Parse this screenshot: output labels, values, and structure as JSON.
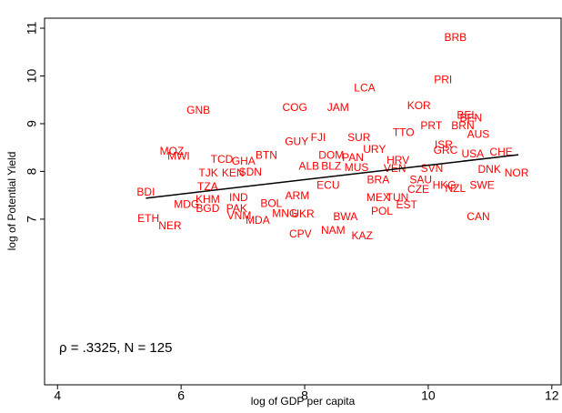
{
  "chart_data": {
    "type": "scatter",
    "x_label": "log of GDP per capita",
    "y_label": "log of Potential Yield",
    "annotation": "ρ = .3325, N = 125",
    "labels": [
      "BRB",
      "PRI",
      "LCA",
      "KOR",
      "GNB",
      "COG",
      "JAM",
      "BEL",
      "BEN",
      "PRT",
      "BRN",
      "TTO",
      "AUS",
      "GUY",
      "FJI",
      "SUR",
      "ISR",
      "URY",
      "GRC",
      "USA",
      "CHE",
      "MOZ",
      "MWI",
      "TCD",
      "GHA",
      "BTN",
      "DOM",
      "PAN",
      "HRV",
      "BLZ",
      "MUS",
      "VEN",
      "SVN",
      "DNK",
      "NOR",
      "TJK",
      "KEN",
      "SDN",
      "ECU",
      "SAU",
      "TZA",
      "BDI",
      "HKG",
      "NZL",
      "SWE",
      "CZE",
      "BRA",
      "KHM",
      "MDG",
      "BGD",
      "PAK",
      "IND",
      "MEX",
      "TUN",
      "EST",
      "POL",
      "CAN",
      "ETH",
      "NER",
      "VNM",
      "MDA",
      "BOL",
      "MNG",
      "UKR",
      "BWA",
      "NAM",
      "CPV",
      "KAZ",
      "ARM",
      "ALB"
    ],
    "x": [
      10.44,
      10.24,
      8.97,
      9.85,
      6.28,
      7.84,
      8.54,
      10.63,
      10.69,
      10.05,
      10.56,
      9.6,
      10.81,
      7.87,
      8.22,
      8.88,
      10.25,
      9.13,
      10.28,
      10.72,
      11.18,
      5.85,
      5.96,
      6.66,
      7.01,
      7.38,
      8.43,
      8.78,
      9.51,
      8.43,
      8.84,
      9.46,
      10.06,
      10.99,
      11.43,
      6.44,
      6.84,
      7.12,
      8.38,
      9.88,
      6.43,
      5.43,
      10.26,
      10.44,
      10.87,
      9.84,
      9.19,
      6.43,
      6.09,
      6.43,
      6.9,
      6.93,
      9.19,
      9.5,
      9.65,
      9.25,
      10.81,
      5.47,
      5.82,
      6.94,
      7.24,
      7.46,
      7.68,
      7.97,
      8.66,
      8.46,
      7.93,
      8.93,
      7.88,
      8.07
    ],
    "values": [
      10.79,
      9.91,
      9.74,
      9.36,
      9.27,
      9.33,
      9.33,
      9.16,
      9.11,
      8.95,
      8.95,
      8.8,
      8.76,
      8.61,
      8.7,
      8.7,
      8.55,
      8.45,
      8.43,
      8.35,
      8.39,
      8.41,
      8.31,
      8.24,
      8.2,
      8.33,
      8.33,
      8.28,
      8.22,
      8.1,
      8.07,
      8.05,
      8.05,
      8.03,
      7.95,
      7.95,
      7.95,
      7.97,
      7.7,
      7.81,
      7.67,
      7.55,
      7.7,
      7.63,
      7.7,
      7.61,
      7.81,
      7.4,
      7.3,
      7.21,
      7.21,
      7.44,
      7.44,
      7.44,
      7.29,
      7.15,
      7.04,
      7.0,
      6.85,
      7.06,
      6.96,
      7.32,
      7.11,
      7.1,
      7.04,
      6.75,
      6.68,
      6.64,
      7.48,
      8.1
    ],
    "color": "#ff0000",
    "fit_line": {
      "x": [
        5.43,
        11.46
      ],
      "values": [
        7.44,
        8.35
      ]
    },
    "xlim": [
      3.79,
      12.15
    ],
    "ylim": [
      3.53,
      11.21
    ],
    "xticks": [
      4,
      6,
      8,
      10,
      12
    ],
    "yticks": [
      7,
      8,
      9,
      10,
      11
    ]
  }
}
